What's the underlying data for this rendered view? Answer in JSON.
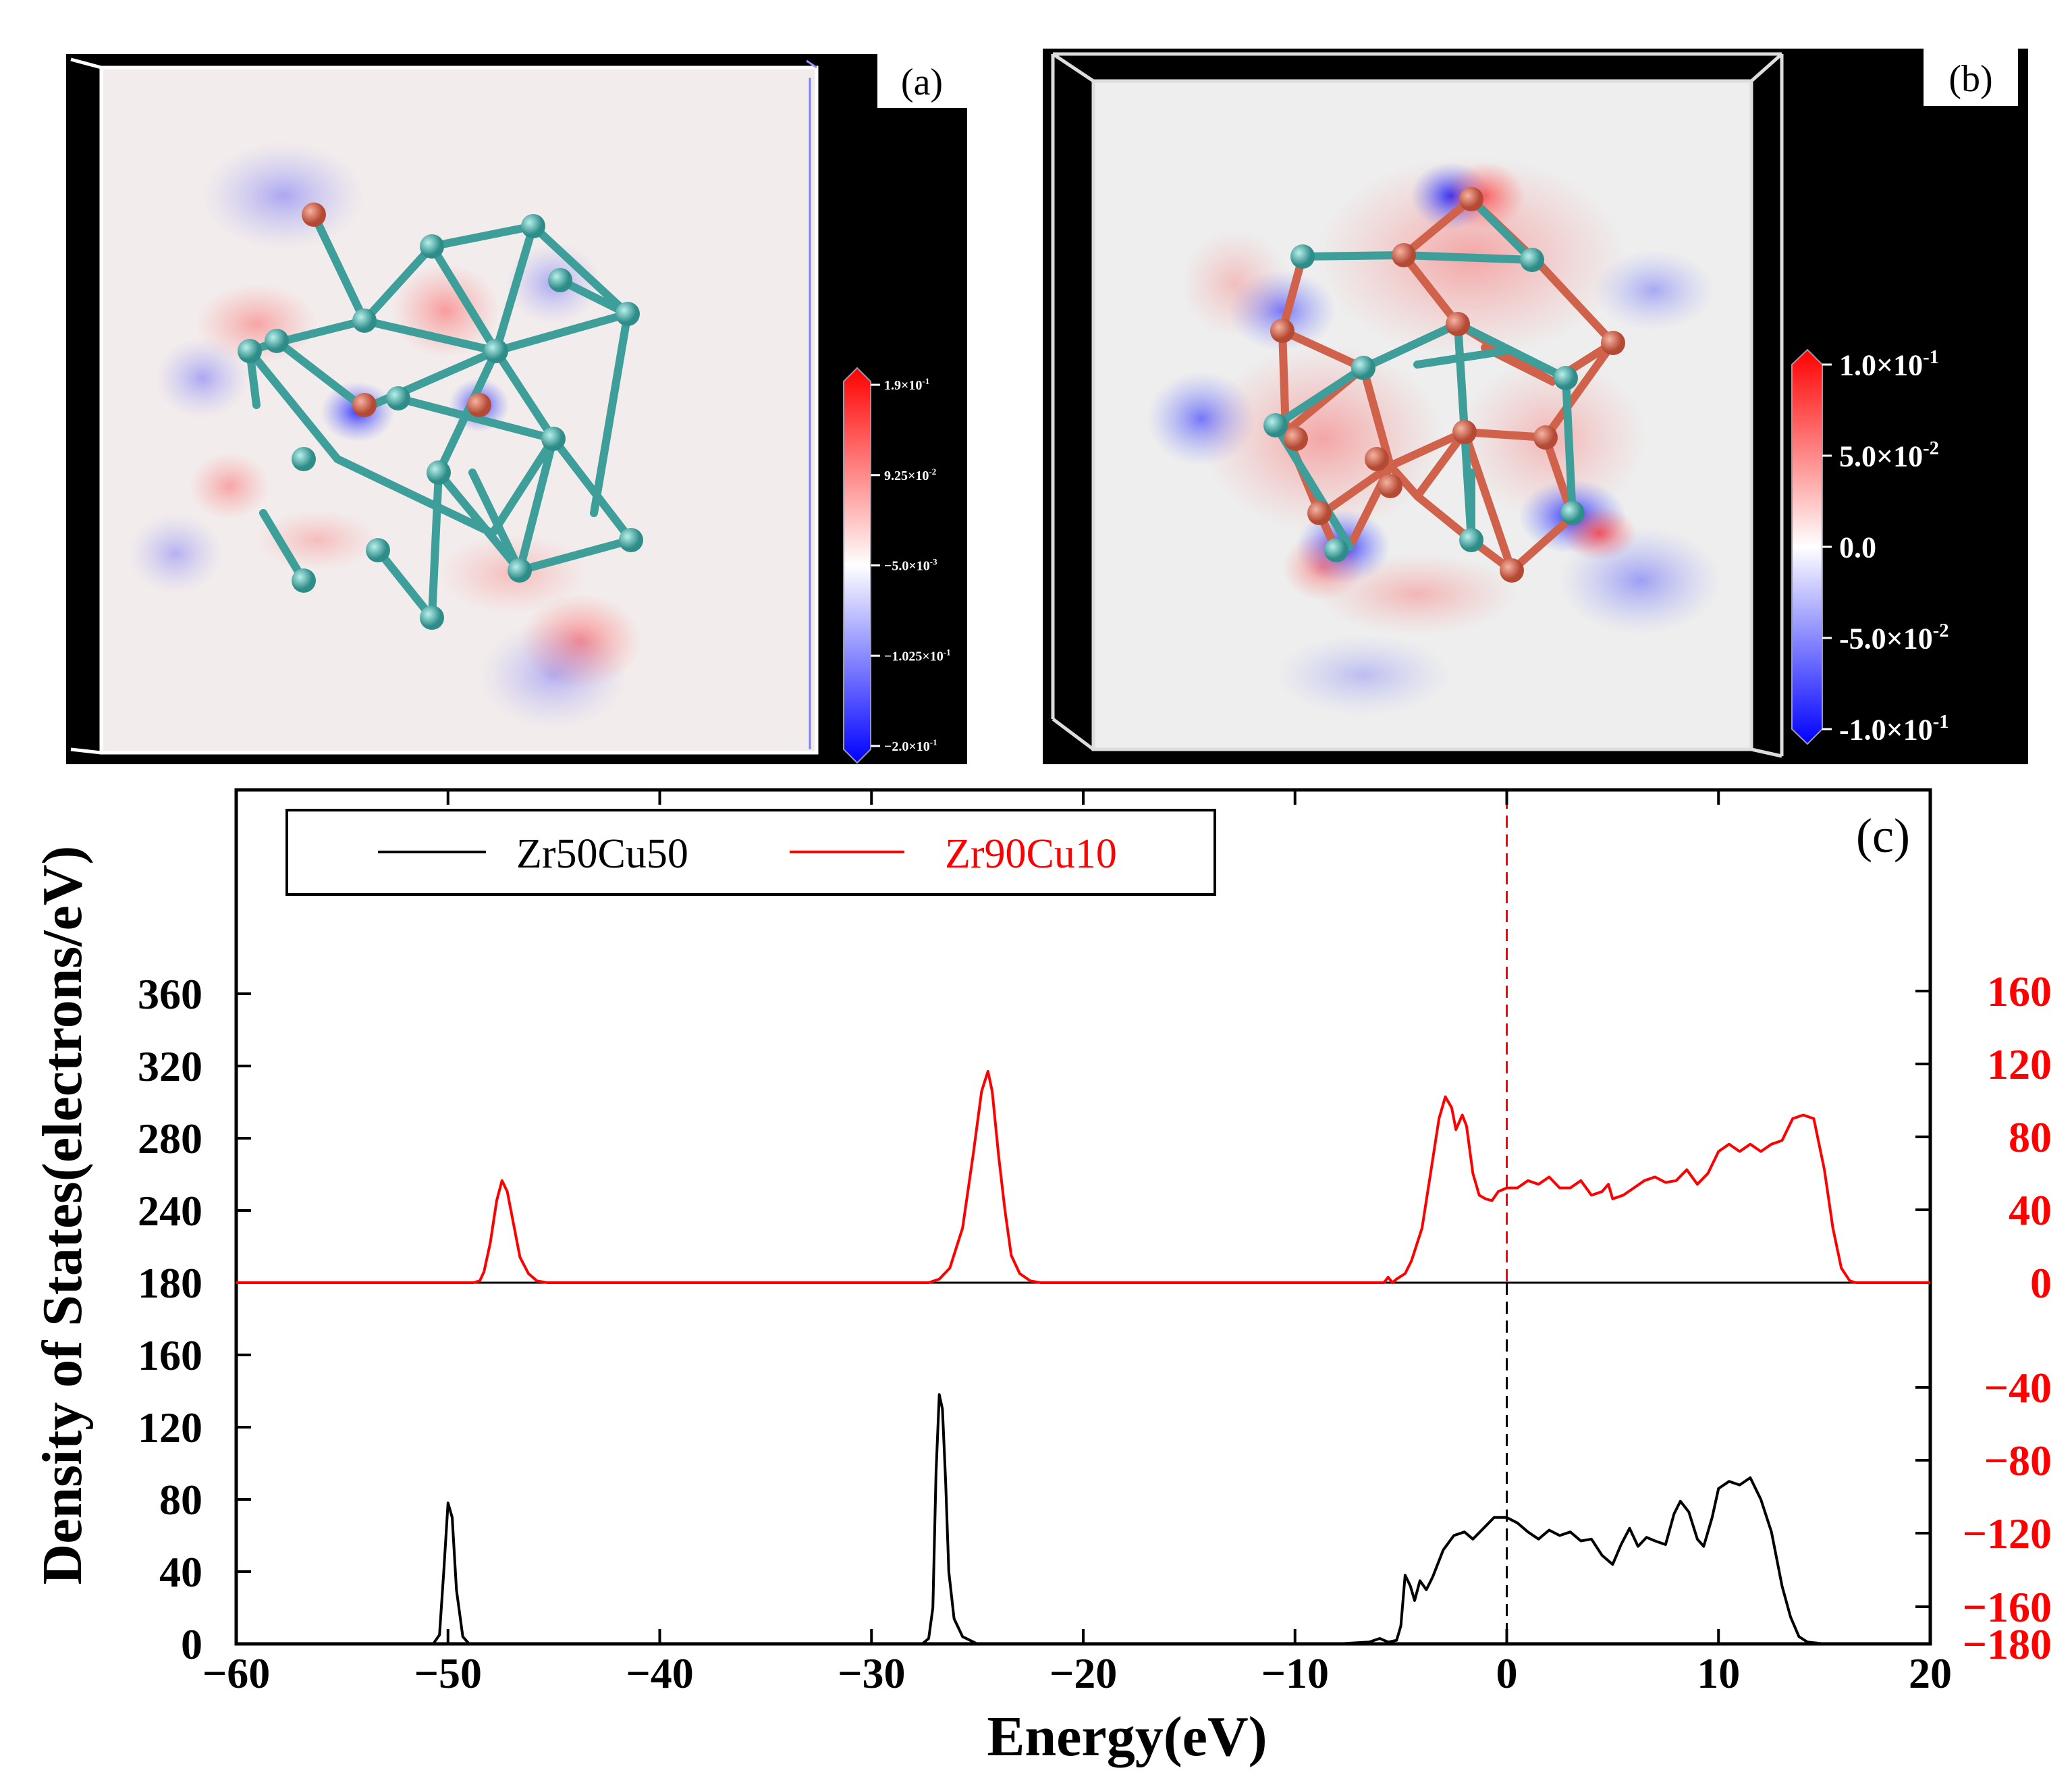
{
  "panel_a": {
    "label": "(a)",
    "colorbar": {
      "ticks": [
        "1.9×10",
        "9.25×10",
        "−5.0×10",
        "−1.025×10",
        "−2.0×10"
      ],
      "exps": [
        "-1",
        "-2",
        "-3",
        "-1",
        "-1"
      ]
    }
  },
  "panel_b": {
    "label": "(b)",
    "colorbar": {
      "ticks": [
        "1.0×10",
        "5.0×10",
        "0.0",
        "-5.0×10",
        "-1.0×10"
      ],
      "exps": [
        "-1",
        "-2",
        "",
        "-2",
        "-1"
      ]
    }
  },
  "colors": {
    "zr50": "#000000",
    "zr90": "#ff0000",
    "atom_zr": "#3d9e9a",
    "atom_cu": "#d0614a"
  },
  "chart_data": {
    "type": "line",
    "label": "(c)",
    "xlabel": "Energy(eV)",
    "ylabel": "Density of States(electrons/eV)",
    "xlim": [
      -60,
      20
    ],
    "x_ticks": [
      -60,
      -50,
      -40,
      -30,
      -20,
      -10,
      0,
      10,
      20
    ],
    "x_tick_labels": [
      "−60",
      "−50",
      "−40",
      "−30",
      "−20",
      "−10",
      "0",
      "10",
      "20"
    ],
    "y_left_ticks": [
      0,
      40,
      80,
      120,
      160,
      180,
      240,
      280,
      320,
      360
    ],
    "y_left_tick_labels": [
      "0",
      "40",
      "80",
      "120",
      "160",
      "180",
      "240",
      "280",
      "320",
      "360"
    ],
    "y_right_ticks": [
      -180,
      -160,
      -120,
      -80,
      -40,
      0,
      40,
      80,
      120,
      160
    ],
    "y_right_tick_labels": [
      "−180",
      "−160",
      "−120",
      "−80",
      "−40",
      "0",
      "40",
      "80",
      "120",
      "160"
    ],
    "legend": {
      "position": "top-left",
      "entries": [
        "Zr50Cu50",
        "Zr90Cu10"
      ]
    },
    "fermi_level": 0,
    "series": [
      {
        "name": "Zr50Cu50",
        "axis": "left",
        "points": [
          [
            -60,
            0
          ],
          [
            -50.7,
            0
          ],
          [
            -50.4,
            5
          ],
          [
            -50.2,
            40
          ],
          [
            -50.0,
            78
          ],
          [
            -49.8,
            70
          ],
          [
            -49.6,
            30
          ],
          [
            -49.3,
            4
          ],
          [
            -49.0,
            0
          ],
          [
            -27.6,
            0
          ],
          [
            -27.3,
            3
          ],
          [
            -27.1,
            20
          ],
          [
            -26.95,
            95
          ],
          [
            -26.8,
            138
          ],
          [
            -26.65,
            130
          ],
          [
            -26.5,
            90
          ],
          [
            -26.35,
            40
          ],
          [
            -26.1,
            14
          ],
          [
            -25.7,
            4
          ],
          [
            -25.0,
            0
          ],
          [
            -8,
            0
          ],
          [
            -6.5,
            1
          ],
          [
            -6.0,
            3
          ],
          [
            -5.6,
            1
          ],
          [
            -5.2,
            2
          ],
          [
            -5.0,
            10
          ],
          [
            -4.8,
            38
          ],
          [
            -4.55,
            32
          ],
          [
            -4.35,
            24
          ],
          [
            -4.1,
            35
          ],
          [
            -3.8,
            30
          ],
          [
            -3.5,
            37
          ],
          [
            -3.0,
            52
          ],
          [
            -2.5,
            60
          ],
          [
            -2.0,
            62
          ],
          [
            -1.6,
            58
          ],
          [
            -1.1,
            64
          ],
          [
            -0.6,
            70
          ],
          [
            0.0,
            70
          ],
          [
            0.5,
            67
          ],
          [
            1.0,
            62
          ],
          [
            1.5,
            58
          ],
          [
            2.0,
            63
          ],
          [
            2.5,
            60
          ],
          [
            3.0,
            62
          ],
          [
            3.5,
            57
          ],
          [
            4.0,
            58
          ],
          [
            4.5,
            49
          ],
          [
            5.0,
            44
          ],
          [
            5.4,
            55
          ],
          [
            5.8,
            64
          ],
          [
            6.2,
            54
          ],
          [
            6.6,
            59
          ],
          [
            7.0,
            57
          ],
          [
            7.5,
            55
          ],
          [
            7.9,
            72
          ],
          [
            8.2,
            79
          ],
          [
            8.6,
            73
          ],
          [
            9.0,
            58
          ],
          [
            9.3,
            54
          ],
          [
            9.7,
            70
          ],
          [
            10.0,
            86
          ],
          [
            10.5,
            90
          ],
          [
            11.0,
            88
          ],
          [
            11.5,
            92
          ],
          [
            12.0,
            80
          ],
          [
            12.5,
            62
          ],
          [
            13.0,
            32
          ],
          [
            13.4,
            15
          ],
          [
            13.8,
            4
          ],
          [
            14.2,
            1
          ],
          [
            15.0,
            0
          ],
          [
            20,
            0
          ]
        ]
      },
      {
        "name": "Zr90Cu10",
        "axis": "right",
        "points": [
          [
            -60,
            0
          ],
          [
            -48.8,
            0
          ],
          [
            -48.5,
            1
          ],
          [
            -48.3,
            6
          ],
          [
            -48.0,
            22
          ],
          [
            -47.7,
            45
          ],
          [
            -47.45,
            56
          ],
          [
            -47.2,
            50
          ],
          [
            -46.9,
            32
          ],
          [
            -46.6,
            14
          ],
          [
            -46.2,
            5
          ],
          [
            -45.8,
            1
          ],
          [
            -45.3,
            0
          ],
          [
            -27.3,
            0
          ],
          [
            -26.8,
            2
          ],
          [
            -26.3,
            8
          ],
          [
            -25.7,
            30
          ],
          [
            -25.2,
            70
          ],
          [
            -24.8,
            105
          ],
          [
            -24.5,
            116
          ],
          [
            -24.3,
            105
          ],
          [
            -24.0,
            70
          ],
          [
            -23.7,
            40
          ],
          [
            -23.4,
            15
          ],
          [
            -23.0,
            5
          ],
          [
            -22.5,
            1
          ],
          [
            -22,
            0
          ],
          [
            -5.8,
            0
          ],
          [
            -5.6,
            3
          ],
          [
            -5.4,
            0
          ],
          [
            -5.2,
            2
          ],
          [
            -4.8,
            5
          ],
          [
            -4.5,
            12
          ],
          [
            -4.0,
            30
          ],
          [
            -3.6,
            60
          ],
          [
            -3.2,
            90
          ],
          [
            -2.9,
            102
          ],
          [
            -2.6,
            96
          ],
          [
            -2.4,
            84
          ],
          [
            -2.1,
            92
          ],
          [
            -1.9,
            86
          ],
          [
            -1.6,
            60
          ],
          [
            -1.3,
            48
          ],
          [
            -1.0,
            46
          ],
          [
            -0.7,
            45
          ],
          [
            -0.4,
            50
          ],
          [
            0,
            52
          ],
          [
            0.5,
            52
          ],
          [
            1.0,
            56
          ],
          [
            1.5,
            54
          ],
          [
            2.0,
            58
          ],
          [
            2.5,
            52
          ],
          [
            3.0,
            52
          ],
          [
            3.5,
            56
          ],
          [
            4.0,
            48
          ],
          [
            4.5,
            50
          ],
          [
            4.8,
            54
          ],
          [
            5.0,
            46
          ],
          [
            5.5,
            48
          ],
          [
            6.0,
            52
          ],
          [
            6.5,
            56
          ],
          [
            7.0,
            58
          ],
          [
            7.5,
            55
          ],
          [
            8.0,
            56
          ],
          [
            8.5,
            62
          ],
          [
            9.0,
            54
          ],
          [
            9.5,
            60
          ],
          [
            10.0,
            72
          ],
          [
            10.5,
            76
          ],
          [
            11.0,
            72
          ],
          [
            11.5,
            76
          ],
          [
            12.0,
            72
          ],
          [
            12.5,
            76
          ],
          [
            13.0,
            78
          ],
          [
            13.5,
            90
          ],
          [
            14.0,
            92
          ],
          [
            14.5,
            90
          ],
          [
            15.0,
            62
          ],
          [
            15.4,
            30
          ],
          [
            15.8,
            8
          ],
          [
            16.2,
            1
          ],
          [
            16.5,
            0
          ],
          [
            20,
            0
          ]
        ]
      }
    ]
  }
}
